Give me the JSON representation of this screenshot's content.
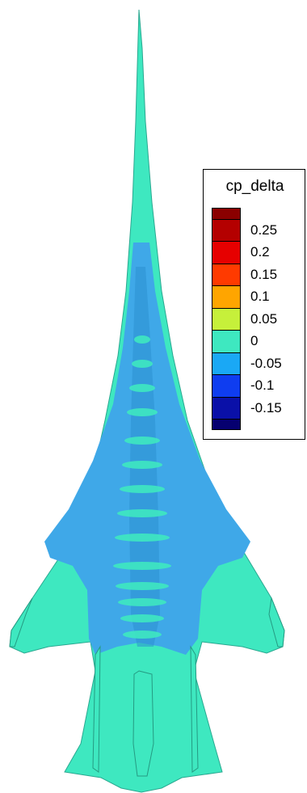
{
  "legend": {
    "title": "cp_delta",
    "levels": [
      {
        "label": "0.25",
        "color": "#b40000"
      },
      {
        "label": "0.2",
        "color": "#e60000"
      },
      {
        "label": "0.15",
        "color": "#ff3a00"
      },
      {
        "label": "0.1",
        "color": "#ffa500"
      },
      {
        "label": "0.05",
        "color": "#c6f03a"
      },
      {
        "label": "0",
        "color": "#3ee8c0"
      },
      {
        "label": "-0.05",
        "color": "#1aa8f5"
      },
      {
        "label": "-0.1",
        "color": "#0f3df0"
      },
      {
        "label": "-0.15",
        "color": "#0a10a8"
      }
    ],
    "top_color": "#8a0000",
    "bottom_color": "#060070"
  },
  "colors": {
    "aircraft_base": "#3ee8c0",
    "aircraft_negative": "#3fa8e8",
    "aircraft_shadow": "#2b8fd0"
  }
}
